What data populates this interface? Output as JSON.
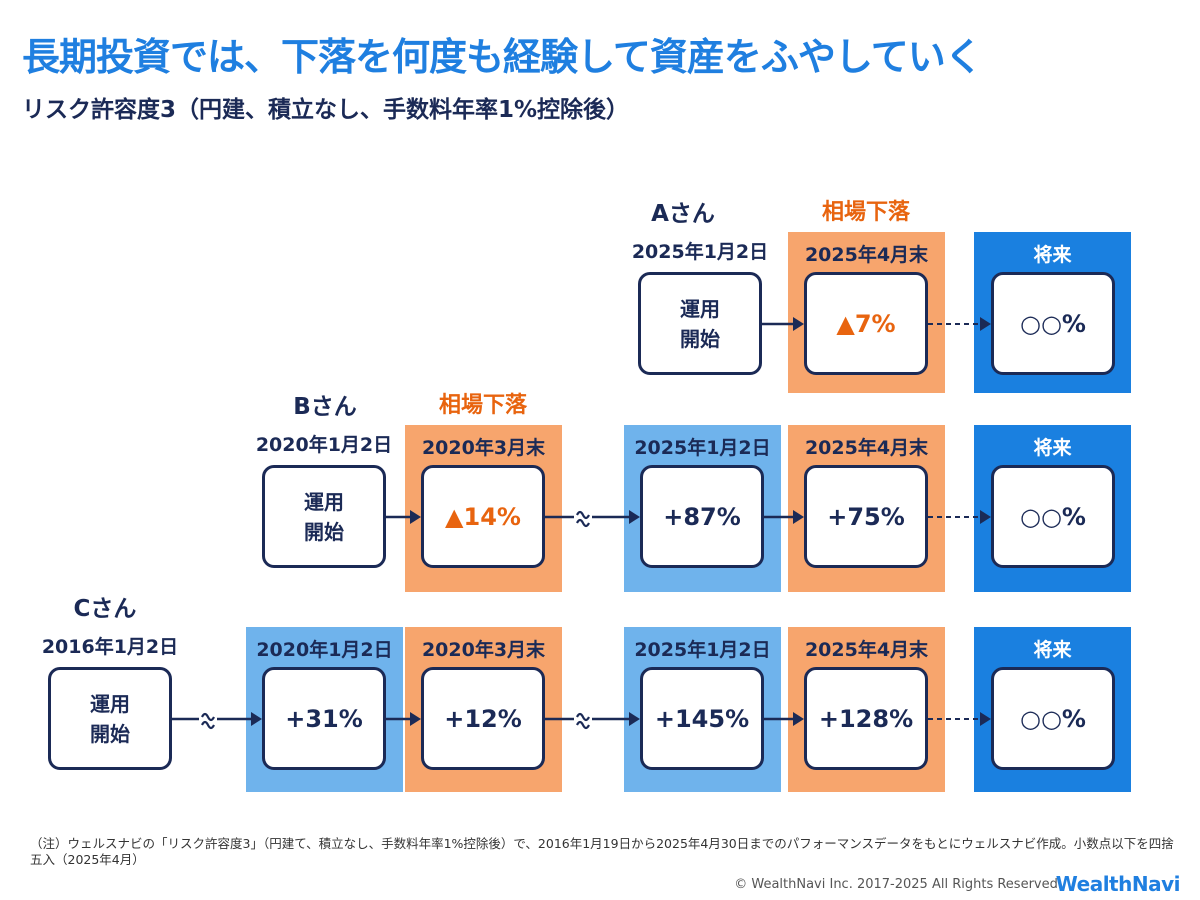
{
  "header": {
    "title": "長期投資では、下落を何度も経験して資産をふやしていく",
    "subtitle": "リスク許容度3（円建、積立なし、手数料年率1%控除後）"
  },
  "rows": [
    {
      "person": "Aさん",
      "event": "相場下落",
      "start": {
        "date": "2025年1月2日",
        "label": "運用開始"
      },
      "stages": [
        {
          "date": "2025年4月末",
          "value": "▲7%"
        }
      ],
      "future": {
        "label": "将来",
        "value": "○○%"
      }
    },
    {
      "person": "Bさん",
      "event": "相場下落",
      "start": {
        "date": "2020年1月2日",
        "label": "運用開始"
      },
      "stages": [
        {
          "date": "2020年3月末",
          "value": "▲14%"
        },
        {
          "date": "2025年1月2日",
          "value": "+87%"
        },
        {
          "date": "2025年4月末",
          "value": "+75%"
        }
      ],
      "future": {
        "label": "将来",
        "value": "○○%"
      }
    },
    {
      "person": "Cさん",
      "start": {
        "date": "2016年1月2日",
        "label": "運用開始"
      },
      "stages": [
        {
          "date": "2020年1月2日",
          "value": "+31%"
        },
        {
          "date": "2020年3月末",
          "value": "+12%"
        },
        {
          "date": "2025年1月2日",
          "value": "+145%"
        },
        {
          "date": "2025年4月末",
          "value": "+128%"
        }
      ],
      "future": {
        "label": "将来",
        "value": "○○%"
      }
    }
  ],
  "footer": {
    "note": "（注）ウェルスナビの「リスク許容度3」（円建て、積立なし、手数料年率1%控除後）で、2016年1月19日から2025年4月30日までのパフォーマンスデータをもとにウェルスナビ作成。小数点以下を四捨五入（2025年4月）",
    "copyright": "© WealthNavi Inc. 2017-2025 All Rights Reserved.",
    "logo": "WealthNavi"
  }
}
